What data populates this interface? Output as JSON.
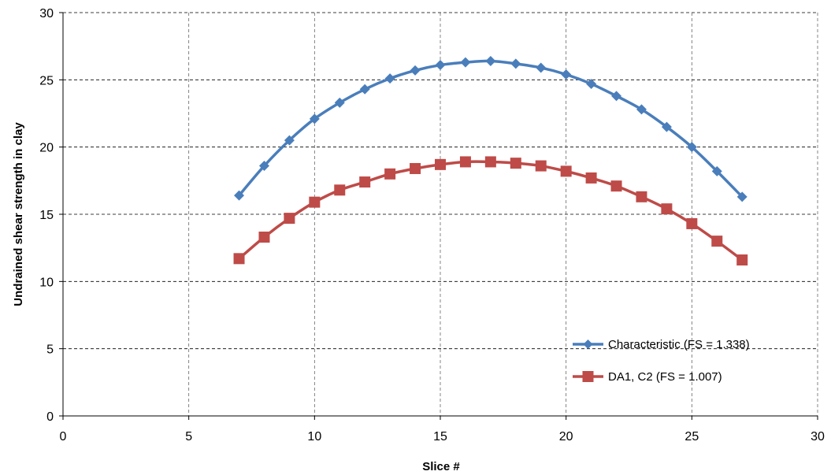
{
  "chart_data": {
    "type": "line",
    "title": "",
    "xlabel": "Slice #",
    "ylabel": "Undrained shear strength in clay",
    "xlim": [
      0,
      30
    ],
    "ylim": [
      0,
      30
    ],
    "xticks": [
      0,
      5,
      10,
      15,
      20,
      25,
      30
    ],
    "yticks": [
      0,
      5,
      10,
      15,
      20,
      25,
      30
    ],
    "grid": true,
    "legend_position": "bottom-right",
    "x": [
      7,
      8,
      9,
      10,
      11,
      12,
      13,
      14,
      15,
      16,
      17,
      18,
      19,
      20,
      21,
      22,
      23,
      24,
      25,
      26,
      27
    ],
    "series": [
      {
        "name": "Characteristic (FS = 1.338)",
        "color": "#4a7ebb",
        "marker": "diamond",
        "values": [
          16.4,
          18.6,
          20.5,
          22.1,
          23.3,
          24.3,
          25.1,
          25.7,
          26.1,
          26.3,
          26.4,
          26.2,
          25.9,
          25.4,
          24.7,
          23.8,
          22.8,
          21.5,
          20.0,
          18.2,
          16.3
        ]
      },
      {
        "name": "DA1, C2 (FS = 1.007)",
        "color": "#be4b48",
        "marker": "square",
        "values": [
          11.7,
          13.3,
          14.7,
          15.9,
          16.8,
          17.4,
          18.0,
          18.4,
          18.7,
          18.9,
          18.9,
          18.8,
          18.6,
          18.2,
          17.7,
          17.1,
          16.3,
          15.4,
          14.3,
          13.0,
          11.6
        ]
      }
    ]
  }
}
